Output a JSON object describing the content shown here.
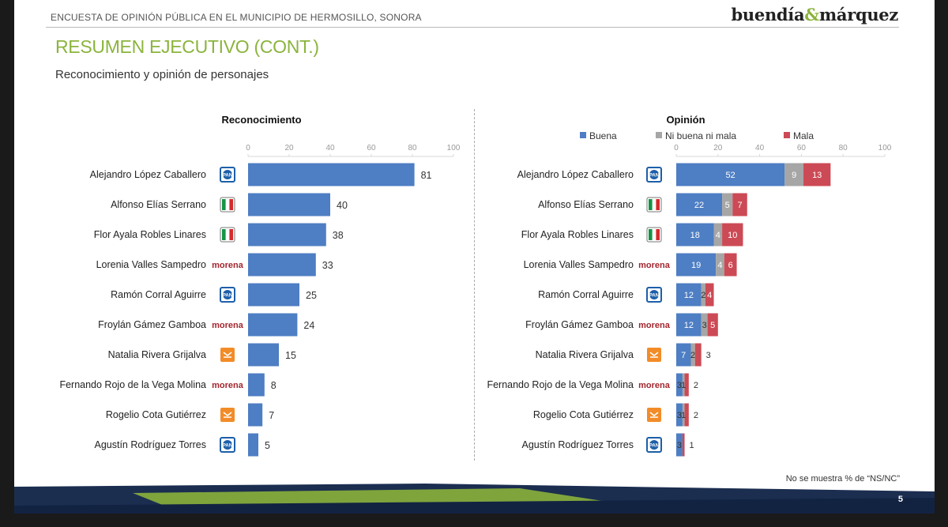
{
  "header": {
    "survey_title": "ENCUESTA DE OPINIÓN PÚBLICA EN EL MUNICIPIO DE HERMOSILLO, SONORA",
    "brand_left": "buendía",
    "brand_amp": "&",
    "brand_right": "márquez"
  },
  "title": "RESUMEN EJECUTIVO (CONT.)",
  "subtitle": "Reconocimiento y opinión de personajes",
  "footnote": "No se muestra % de “NS/NC”",
  "page_number": "5",
  "colors": {
    "buena": "#4e7ec3",
    "ni": "#a6a6a6",
    "mala": "#cc4a55",
    "bar": "#4e7ec3",
    "accent": "#8bb43c",
    "pan": "#1d5fa8",
    "pri_green": "#159447",
    "pri_red": "#d52b2b",
    "morena": "#a3262e",
    "mc": "#f28c28"
  },
  "chart_data": [
    {
      "type": "bar",
      "orientation": "horizontal",
      "title": "Reconocimiento",
      "xlim": [
        0,
        100
      ],
      "xticks": [
        0,
        20,
        40,
        60,
        80,
        100
      ],
      "categories": [
        "Alejandro López Caballero",
        "Alfonso Elías Serrano",
        "Flor Ayala Robles Linares",
        "Lorenia Valles Sampedro",
        "Ramón Corral Aguirre",
        "Froylán Gámez Gamboa",
        "Natalia Rivera Grijalva",
        "Fernando Rojo de la Vega Molina",
        "Rogelio Cota Gutiérrez",
        "Agustín Rodríguez Torres"
      ],
      "parties": [
        "PAN",
        "PRI",
        "PRI",
        "morena",
        "PAN",
        "morena",
        "MC",
        "morena",
        "MC",
        "PAN"
      ],
      "values": [
        81,
        40,
        38,
        33,
        25,
        24,
        15,
        8,
        7,
        5
      ]
    },
    {
      "type": "bar",
      "orientation": "horizontal",
      "stacked": true,
      "title": "Opinión",
      "xlim": [
        0,
        100
      ],
      "xticks": [
        0,
        20,
        40,
        60,
        80,
        100
      ],
      "legend": "top",
      "categories": [
        "Alejandro López Caballero",
        "Alfonso Elías Serrano",
        "Flor Ayala Robles Linares",
        "Lorenia Valles Sampedro",
        "Ramón Corral Aguirre",
        "Froylán Gámez Gamboa",
        "Natalia Rivera Grijalva",
        "Fernando Rojo de la Vega Molina",
        "Rogelio Cota Gutiérrez",
        "Agustín Rodríguez Torres"
      ],
      "parties": [
        "PAN",
        "PRI",
        "PRI",
        "morena",
        "PAN",
        "morena",
        "MC",
        "morena",
        "MC",
        "PAN"
      ],
      "series": [
        {
          "name": "Buena",
          "values": [
            52,
            22,
            18,
            19,
            12,
            12,
            7,
            3,
            3,
            3
          ]
        },
        {
          "name": "Ni buena ni mala",
          "values": [
            9,
            5,
            4,
            4,
            2,
            3,
            2,
            1,
            1,
            null
          ]
        },
        {
          "name": "Mala",
          "values": [
            13,
            7,
            10,
            6,
            4,
            5,
            3,
            2,
            2,
            1
          ]
        }
      ]
    }
  ],
  "party_labels": {
    "morena": "morena",
    "PAN": "PAN"
  }
}
